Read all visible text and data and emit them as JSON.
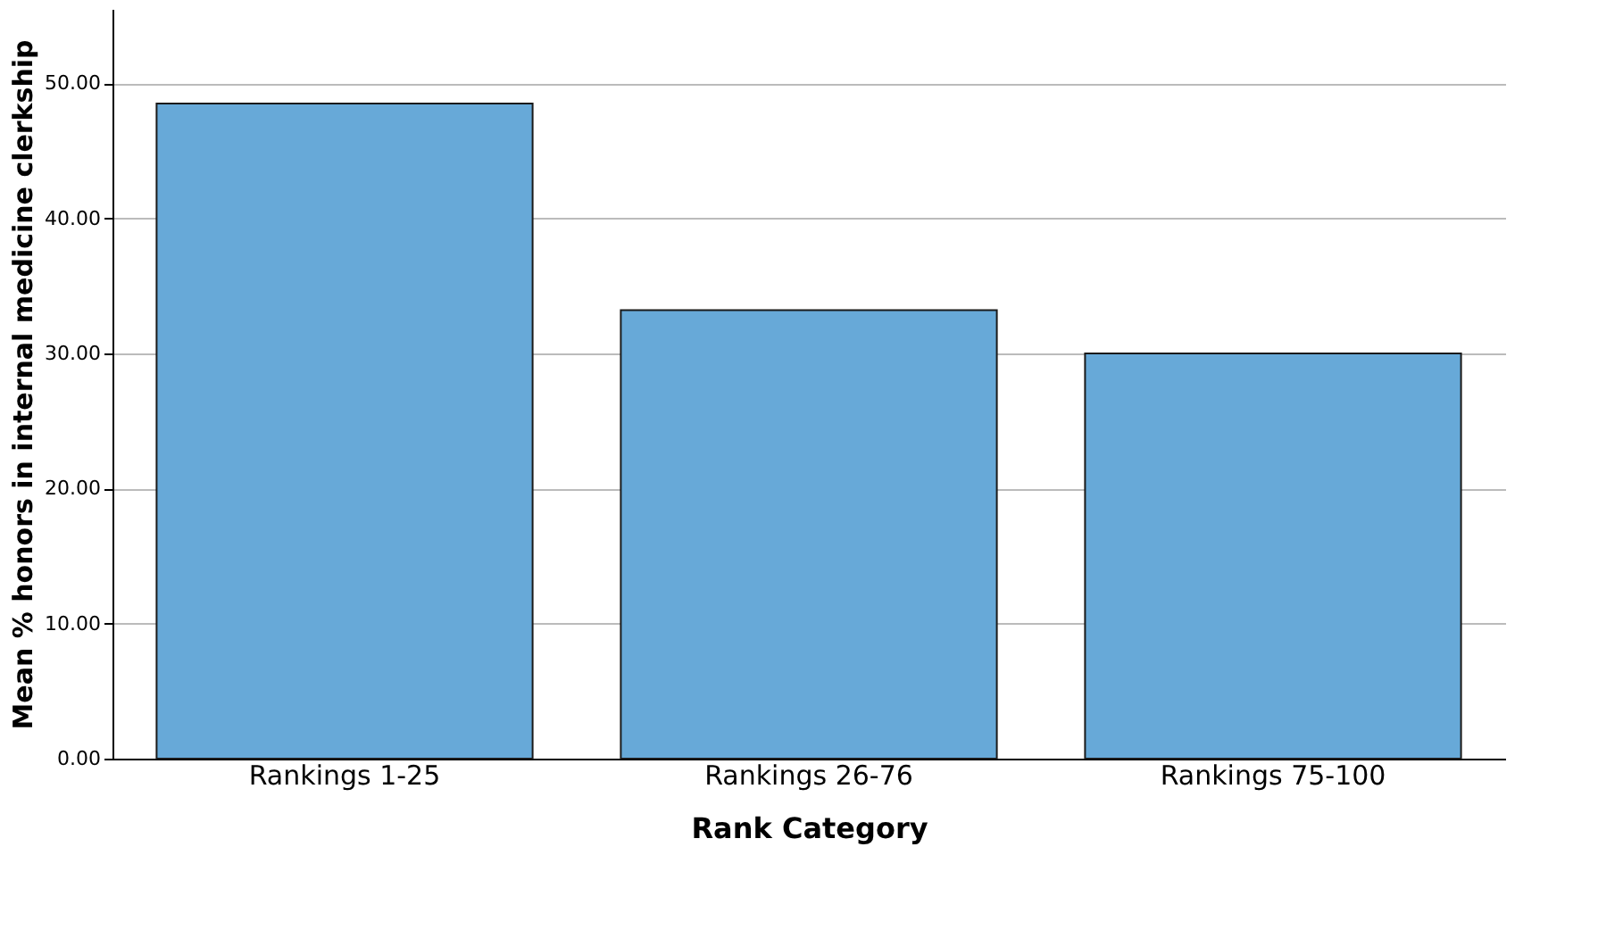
{
  "chart_data": {
    "type": "bar",
    "xlabel": "Rank Category",
    "ylabel": "Mean % honors in internal medicine clerkship",
    "categories": [
      "Rankings 1-25",
      "Rankings 26-76",
      "Rankings 75-100"
    ],
    "values": [
      48.5,
      33.2,
      30.0
    ],
    "color": "#67a9d8",
    "ylim": [
      0,
      55.5
    ],
    "yticks": [
      {
        "value": 0,
        "label": "0.00"
      },
      {
        "value": 10,
        "label": "10.00"
      },
      {
        "value": 20,
        "label": "20.00"
      },
      {
        "value": 30,
        "label": "30.00"
      },
      {
        "value": 40,
        "label": "40.00"
      },
      {
        "value": 50,
        "label": "50.00"
      }
    ],
    "grid": "y"
  }
}
